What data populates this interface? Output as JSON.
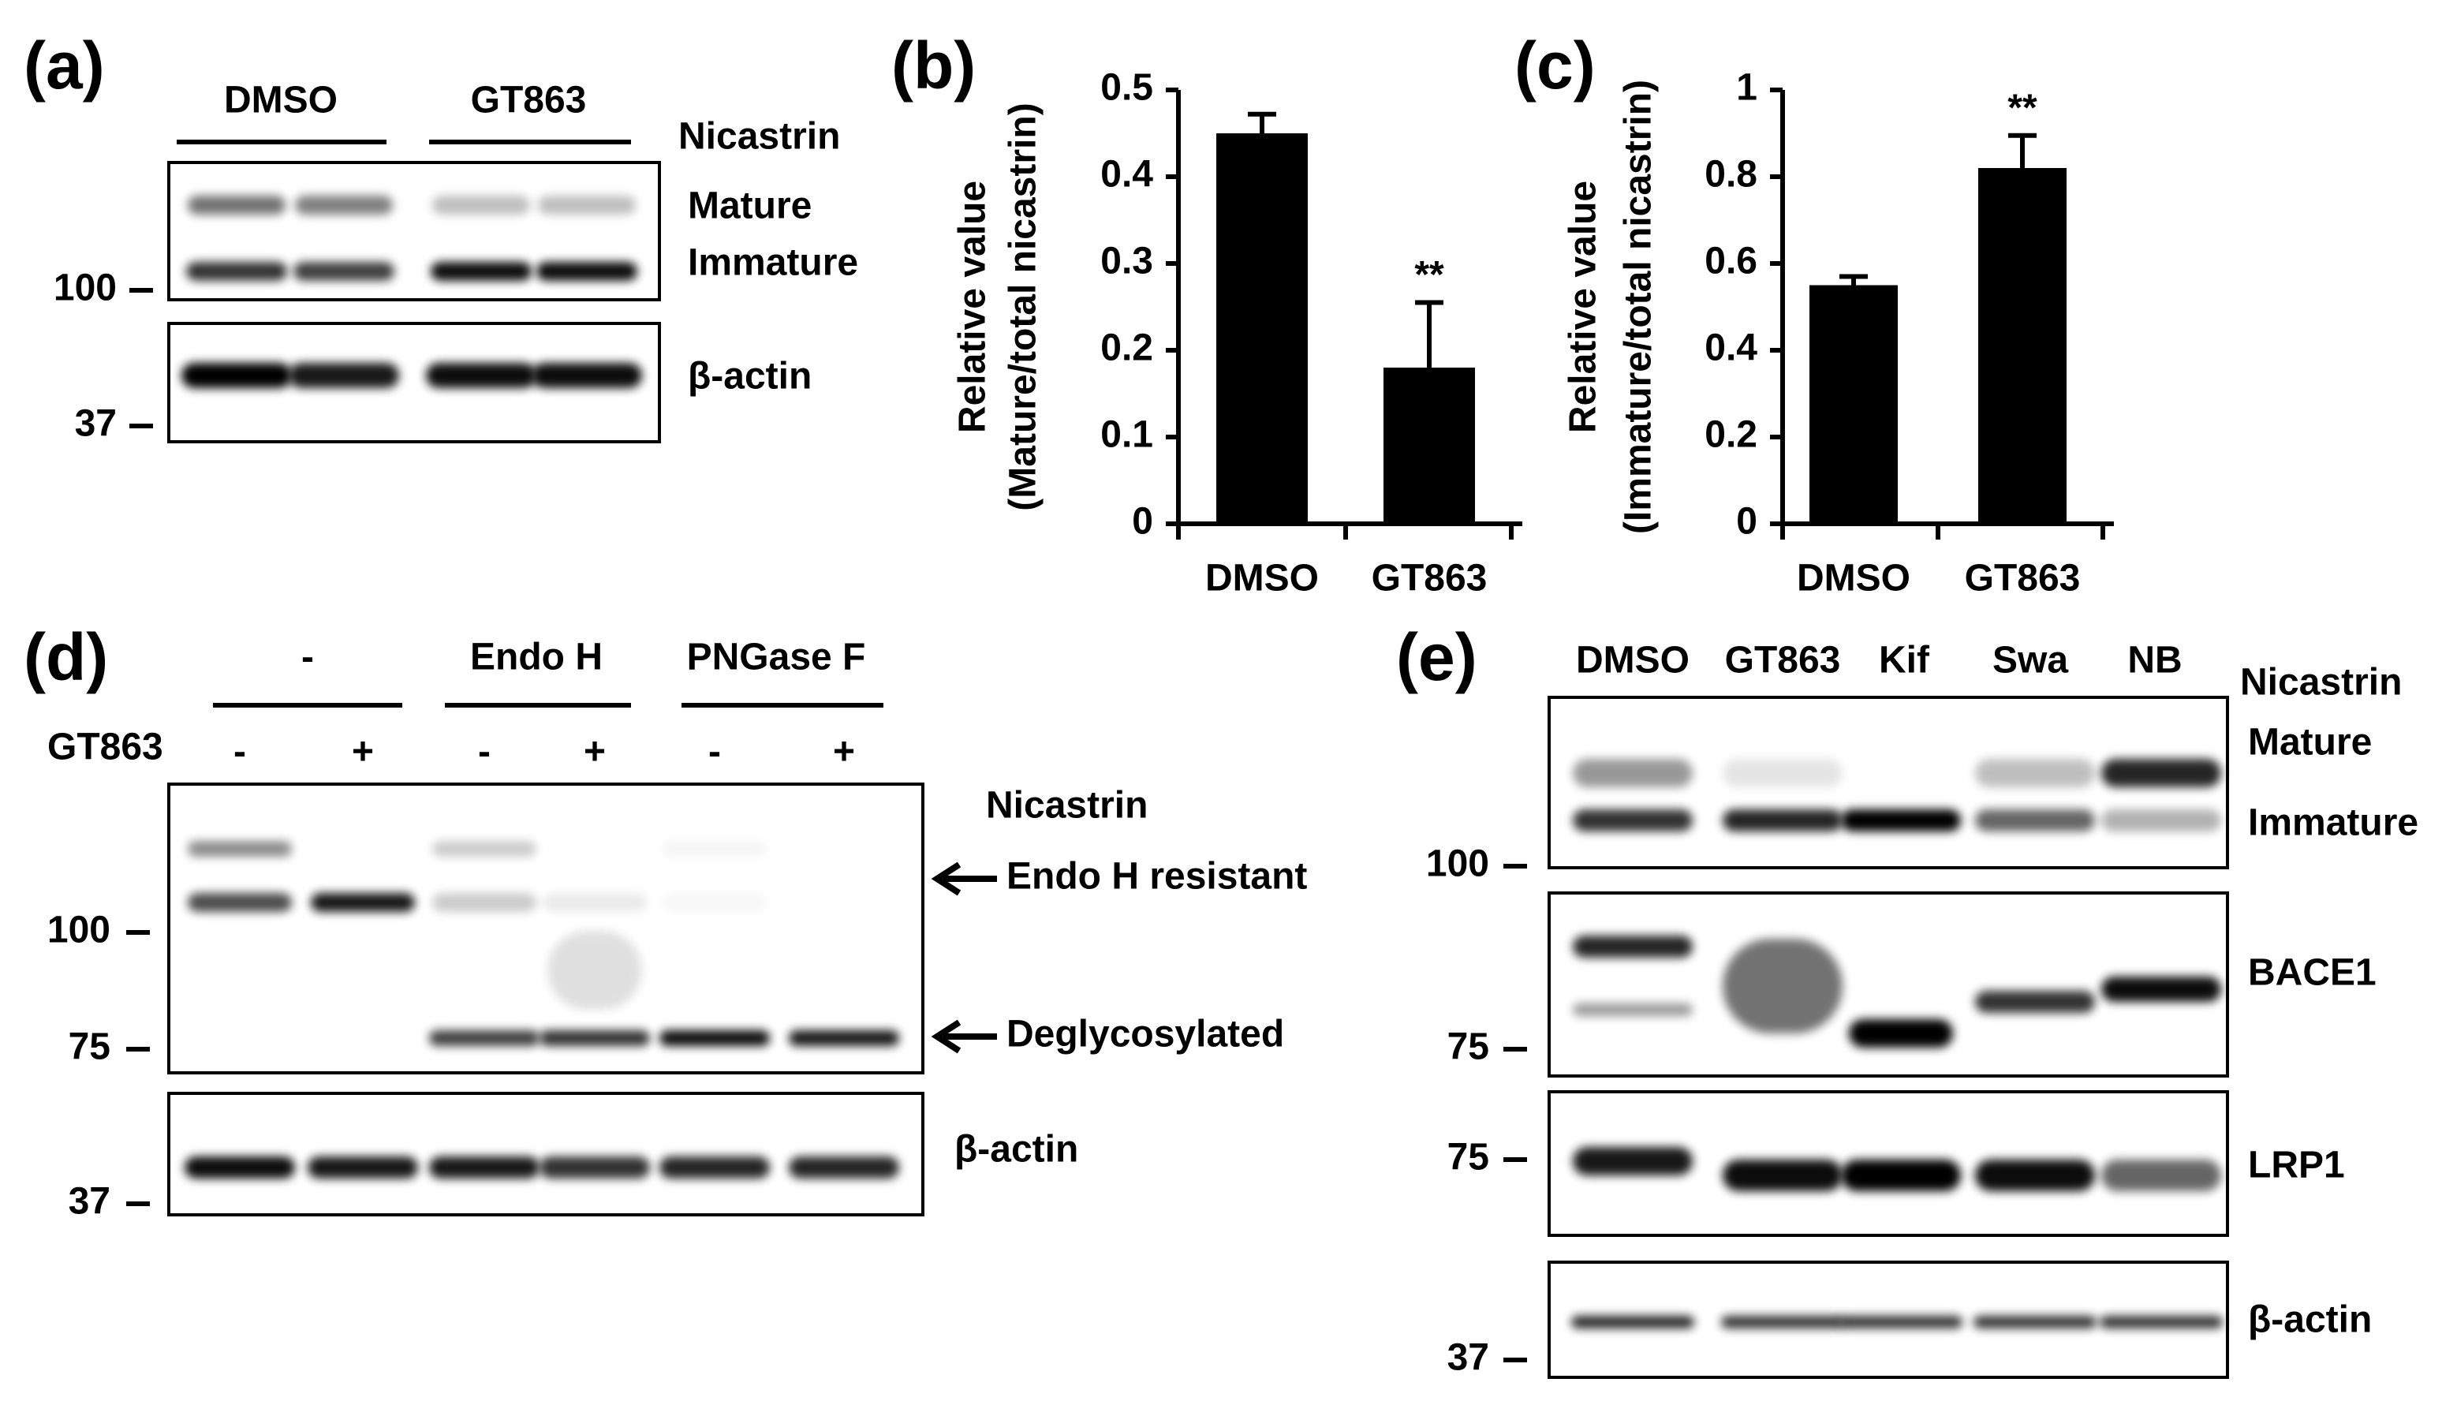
{
  "chart_data": [
    {
      "type": "bar",
      "panel_label": "(b)",
      "ylabel": [
        "Relative value",
        "(Mature/total nicastrin)"
      ],
      "categories": [
        "DMSO",
        "GT863"
      ],
      "values": [
        0.45,
        0.18
      ],
      "errors": [
        0.022,
        0.075
      ],
      "significance": [
        null,
        "**"
      ],
      "color": "#000000",
      "ylim": [
        0,
        0.5
      ],
      "yticks": [
        0,
        0.1,
        0.2,
        0.3,
        0.4,
        0.5
      ]
    },
    {
      "type": "bar",
      "panel_label": "(c)",
      "ylabel": [
        "Relative value",
        "(Immature/total nicastrin)"
      ],
      "categories": [
        "DMSO",
        "GT863"
      ],
      "values": [
        0.55,
        0.82
      ],
      "errors": [
        0.02,
        0.075
      ],
      "significance": [
        null,
        "**"
      ],
      "color": "#000000",
      "ylim": [
        0,
        1
      ],
      "yticks": [
        0,
        0.2,
        0.4,
        0.6,
        0.8,
        1
      ]
    }
  ],
  "panel_a": {
    "label": "(a)",
    "groups": [
      "DMSO",
      "GT863"
    ],
    "protein": "Nicastrin",
    "bands": [
      "Mature",
      "Immature"
    ],
    "loading": "β-actin",
    "markers": [
      100,
      37
    ]
  },
  "panel_d": {
    "label": "(d)",
    "groups": [
      "-",
      "Endo H",
      "PNGase F"
    ],
    "treatment": "GT863",
    "signs": [
      "-",
      "+",
      "-",
      "+",
      "-",
      "+"
    ],
    "protein": "Nicastrin",
    "arrows": [
      "Endo H resistant",
      "Deglycosylated"
    ],
    "loading": "β-actin",
    "markers": [
      100,
      75,
      37
    ]
  },
  "panel_e": {
    "label": "(e)",
    "lanes": [
      "DMSO",
      "GT863",
      "Kif",
      "Swa",
      "NB"
    ],
    "protein": "Nicastrin",
    "bands": [
      "Mature",
      "Immature"
    ],
    "blots": [
      "BACE1",
      "LRP1",
      "β-actin"
    ],
    "markers": [
      100,
      75,
      75,
      37
    ]
  }
}
